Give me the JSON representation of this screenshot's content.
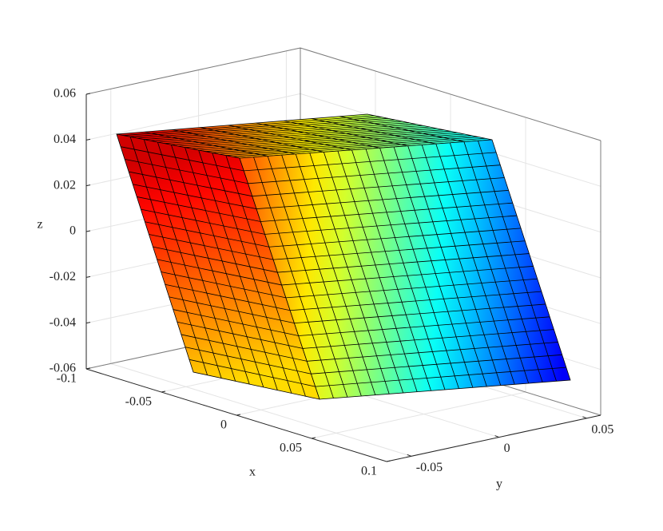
{
  "chart_data": {
    "type": "surface3d",
    "xlabel": "x",
    "ylabel": "y",
    "zlabel": "z",
    "xlim": [
      -0.1,
      0.1
    ],
    "xticks": [
      -0.1,
      -0.05,
      0,
      0.05,
      0.1
    ],
    "ylim": [
      -0.064,
      0.058
    ],
    "yticks": [
      -0.05,
      0,
      0.05
    ],
    "zlim": [
      -0.06,
      0.06
    ],
    "zticks": [
      -0.06,
      -0.04,
      -0.02,
      0,
      0.02,
      0.04,
      0.06
    ],
    "grid": true,
    "colormap": "jet"
  }
}
